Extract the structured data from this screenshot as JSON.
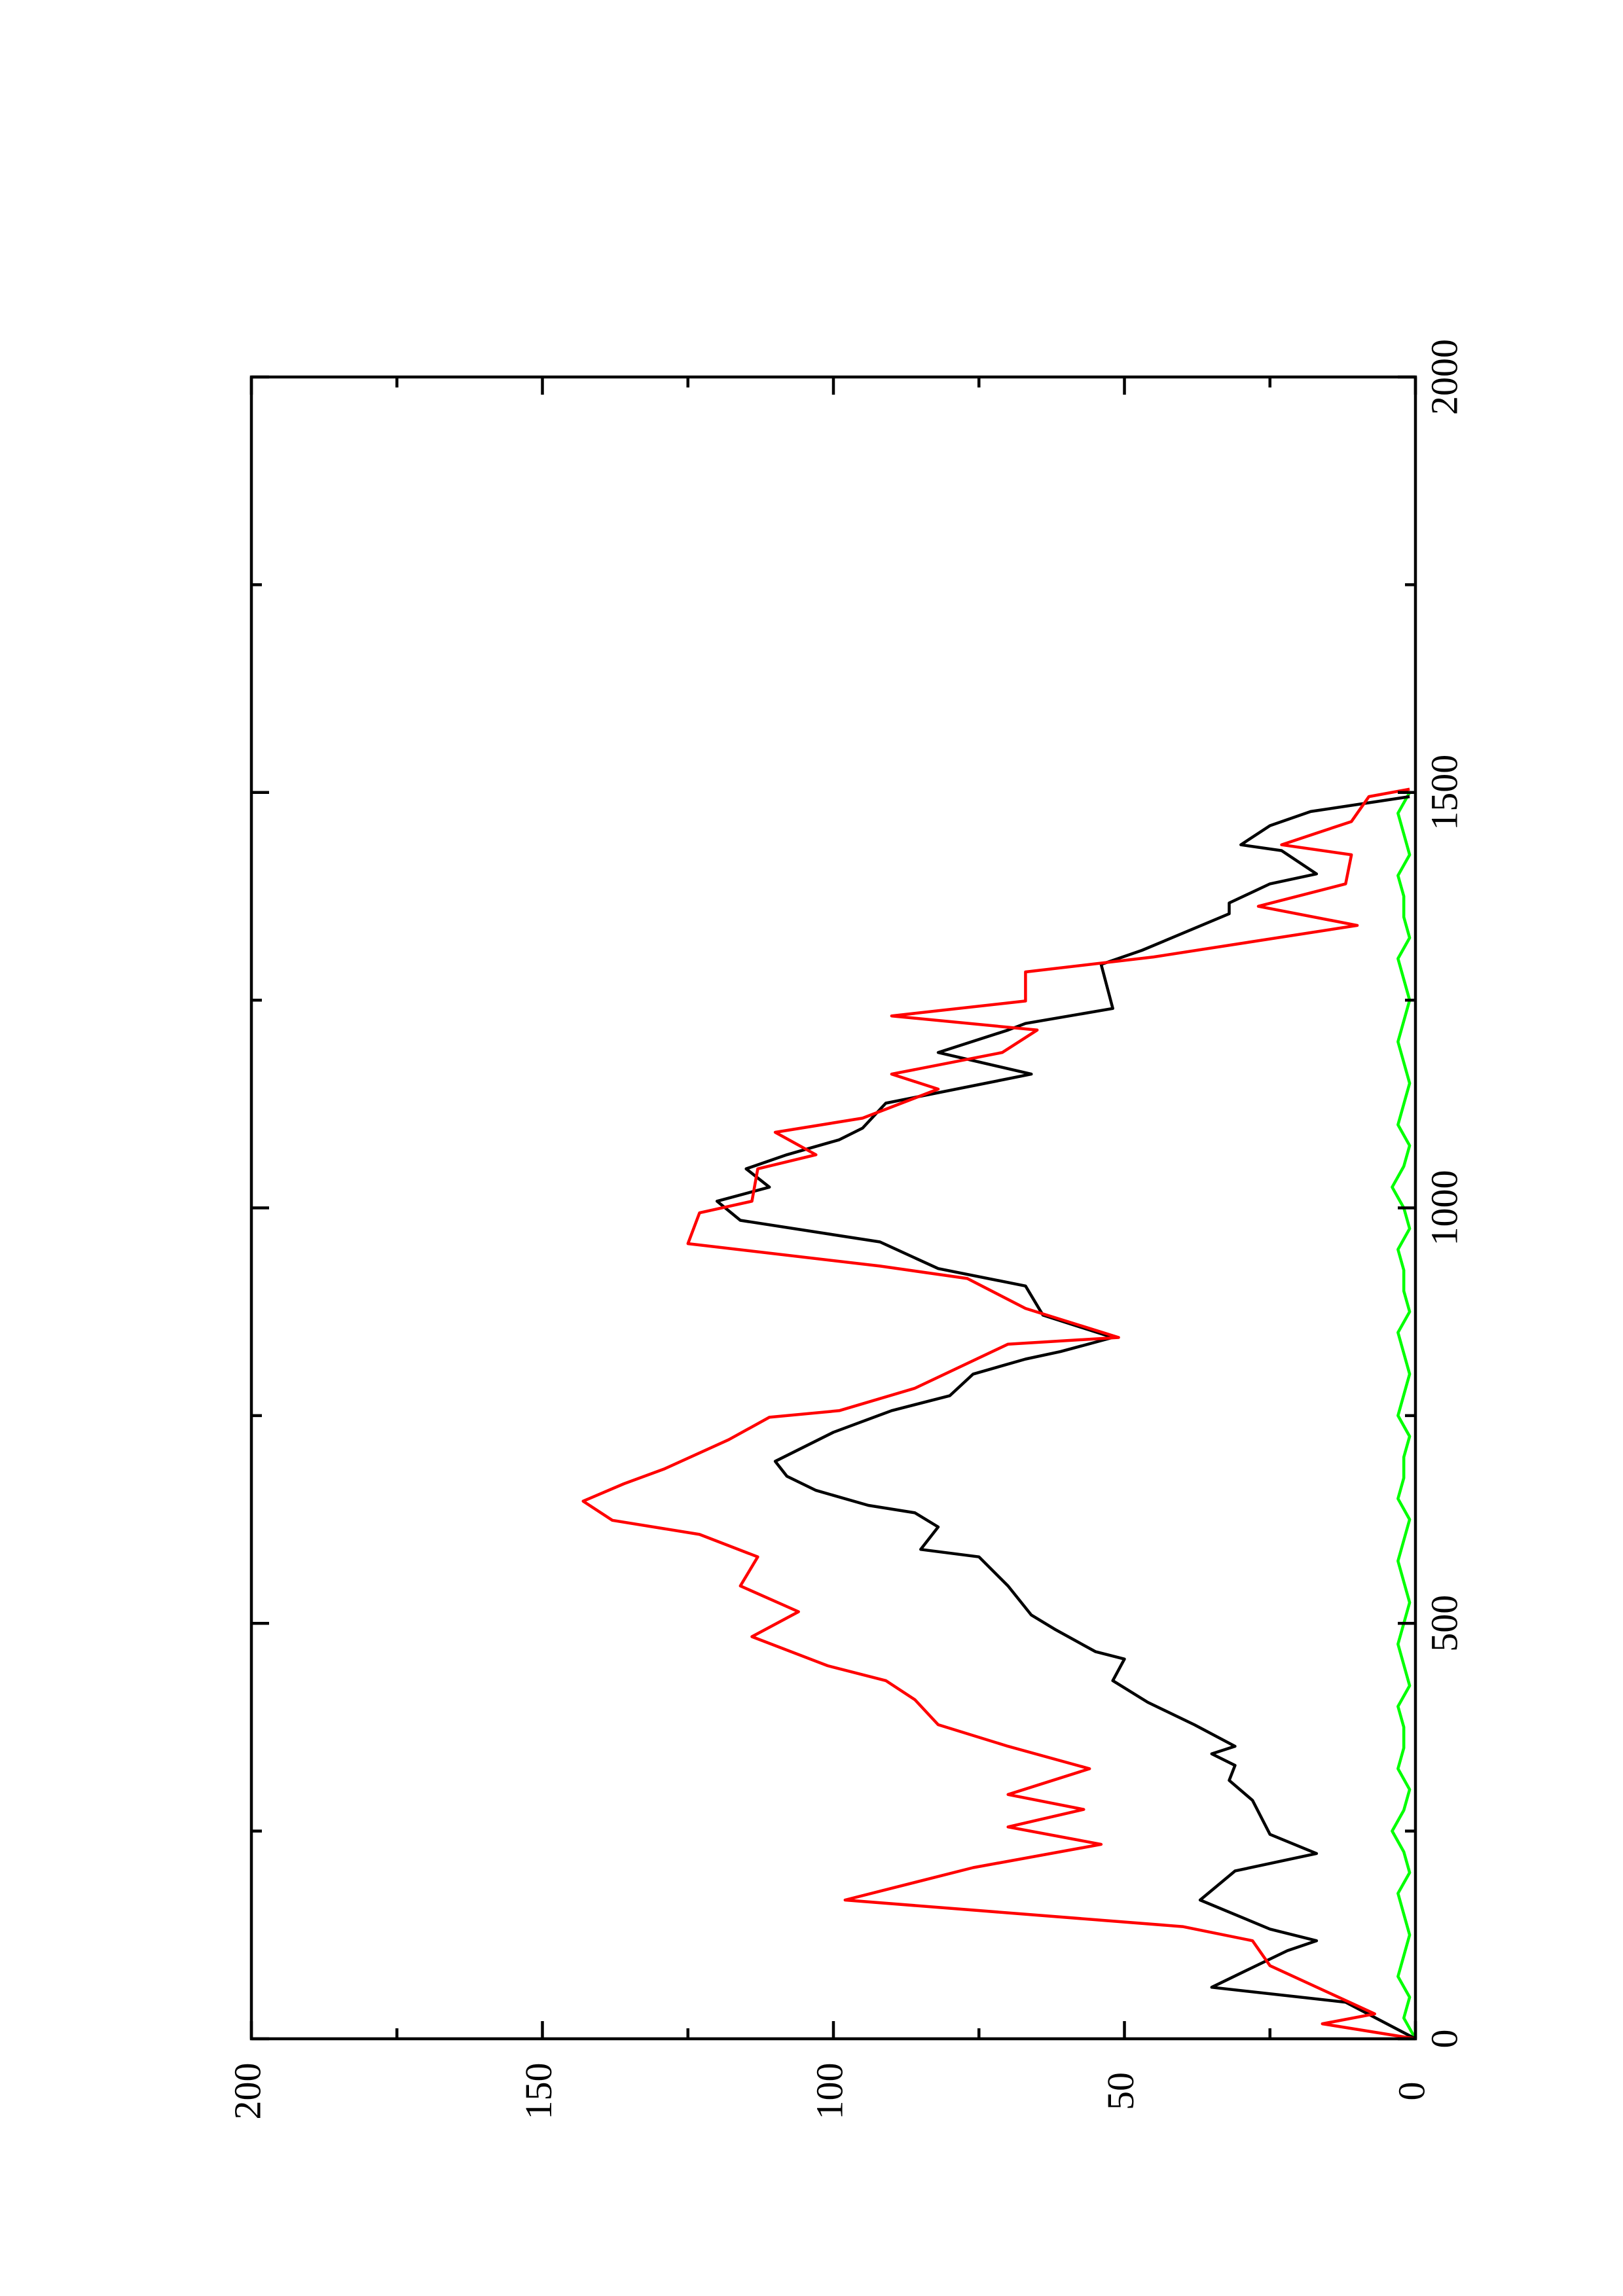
{
  "chart_data": {
    "type": "line",
    "rotated": true,
    "xlim": [
      0,
      2000
    ],
    "ylim": [
      0,
      200
    ],
    "xticks": [
      0,
      500,
      1000,
      1500,
      2000
    ],
    "xminor_ticks": [
      250,
      750,
      1250,
      1750
    ],
    "yticks": [
      0,
      50,
      100,
      150,
      200
    ],
    "yminor_ticks": [
      25,
      75,
      125,
      175
    ],
    "series": [
      {
        "color": "#ff0000",
        "x": [
          0,
          18,
          30,
          88,
          118,
          135,
          167,
          206,
          234,
          255,
          276,
          294,
          325,
          352,
          378,
          408,
          431,
          449,
          484,
          514,
          545,
          580,
          607,
          624,
          647,
          668,
          686,
          721,
          748,
          756,
          783,
          836,
          844,
          879,
          915,
          930,
          957,
          994,
          1008,
          1047,
          1064,
          1091,
          1108,
          1143,
          1161,
          1187,
          1214,
          1231,
          1249,
          1284,
          1302,
          1340,
          1363,
          1390,
          1425,
          1437,
          1465,
          1495,
          1504
        ],
        "values": [
          0,
          16,
          7,
          25,
          28,
          40,
          98,
          76,
          54,
          70,
          57,
          70,
          56,
          70,
          82,
          86,
          91,
          101,
          114,
          106,
          116,
          113,
          123,
          138,
          143,
          136,
          129,
          118,
          111,
          99,
          86,
          70,
          51,
          67,
          77,
          92,
          125,
          123,
          114,
          113,
          103,
          110,
          95,
          82,
          90,
          71,
          65,
          90,
          67,
          67,
          45,
          10,
          27,
          12,
          11,
          23,
          11,
          8,
          1
        ]
      },
      {
        "color": "#000000",
        "x": [
          0,
          44,
          62,
          79,
          106,
          118,
          132,
          167,
          202,
          223,
          246,
          287,
          311,
          329,
          343,
          352,
          378,
          405,
          431,
          457,
          466,
          493,
          510,
          545,
          580,
          589,
          616,
          633,
          642,
          660,
          677,
          695,
          730,
          756,
          774,
          800,
          818,
          827,
          844,
          871,
          906,
          927,
          959,
          985,
          1008,
          1025,
          1047,
          1064,
          1082,
          1096,
          1126,
          1161,
          1187,
          1214,
          1222,
          1240,
          1293,
          1310,
          1354,
          1367,
          1390,
          1402,
          1430,
          1437,
          1460,
          1477,
          1495
        ],
        "values": [
          0,
          12,
          35,
          30,
          22,
          17,
          25,
          37,
          31,
          17,
          25,
          28,
          32,
          31,
          35,
          31,
          38,
          46,
          52,
          50,
          55,
          62,
          66,
          70,
          75,
          85,
          82,
          86,
          94,
          103,
          108,
          110,
          100,
          90,
          80,
          76,
          67,
          61,
          52,
          64,
          67,
          82,
          92,
          116,
          120,
          111,
          115,
          108,
          99,
          95,
          91,
          66,
          82,
          70,
          67,
          52,
          54,
          47,
          32,
          32,
          25,
          17,
          23,
          30,
          25,
          18,
          1
        ]
      },
      {
        "color": "#00ff00",
        "x": [
          0,
          25,
          50,
          75,
          100,
          125,
          150,
          175,
          200,
          225,
          250,
          275,
          300,
          325,
          350,
          375,
          400,
          425,
          450,
          475,
          500,
          525,
          550,
          575,
          600,
          625,
          650,
          675,
          700,
          725,
          750,
          775,
          800,
          825,
          850,
          875,
          900,
          925,
          950,
          975,
          1000,
          1025,
          1050,
          1075,
          1100,
          1125,
          1150,
          1175,
          1200,
          1225,
          1250,
          1275,
          1300,
          1325,
          1350,
          1375,
          1400,
          1425,
          1450,
          1475,
          1500
        ],
        "values": [
          0,
          2,
          1,
          3,
          2,
          1,
          2,
          3,
          1,
          2,
          4,
          2,
          1,
          3,
          2,
          2,
          3,
          1,
          2,
          3,
          2,
          1,
          2,
          3,
          2,
          1,
          3,
          2,
          2,
          1,
          3,
          2,
          1,
          2,
          3,
          1,
          2,
          2,
          3,
          1,
          2,
          4,
          2,
          1,
          3,
          2,
          1,
          2,
          3,
          2,
          1,
          2,
          3,
          1,
          2,
          2,
          3,
          1,
          2,
          3,
          1
        ]
      }
    ]
  }
}
